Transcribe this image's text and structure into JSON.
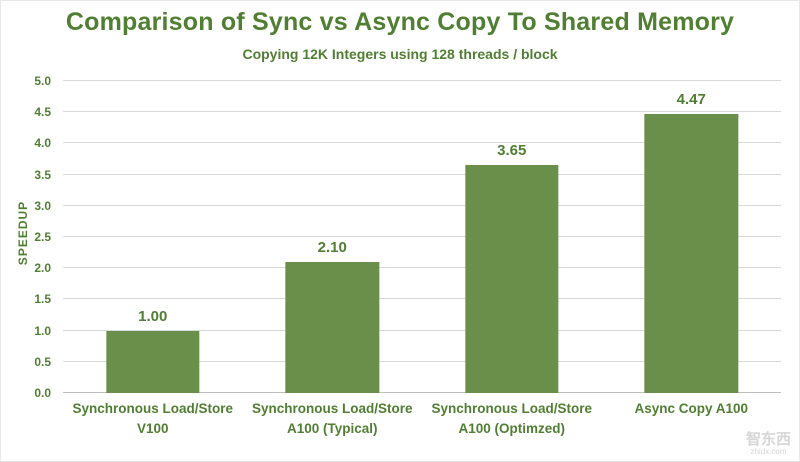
{
  "title": "Comparison of Sync vs Async Copy To Shared Memory",
  "subtitle": "Copying 12K Integers using 128 threads / block",
  "colors": {
    "text_green": "#507e32",
    "bar_green": "#6a8f4b",
    "gridline": "#d9d9d9",
    "axis_line": "#bfbfbf",
    "watermark": "#c9c9c9",
    "background": "#ffffff"
  },
  "watermark": {
    "line1": "智东西",
    "line2": "zhidx.com"
  },
  "chart_data": {
    "type": "bar",
    "title": "Comparison of Sync vs Async Copy To Shared Memory",
    "subtitle": "Copying 12K Integers using 128 threads / block",
    "xlabel": "",
    "ylabel": "SPEEDUP",
    "ylim": [
      0,
      5
    ],
    "ytick_step": 0.5,
    "yticks": [
      "0.0",
      "0.5",
      "1.0",
      "1.5",
      "2.0",
      "2.5",
      "3.0",
      "3.5",
      "4.0",
      "4.5",
      "5.0"
    ],
    "grid": "horizontal",
    "legend": "none",
    "categories": [
      [
        "Synchronous Load/Store",
        "V100"
      ],
      [
        "Synchronous Load/Store",
        "A100 (Typical)"
      ],
      [
        "Synchronous Load/Store",
        "A100 (Optimzed)"
      ],
      [
        "Async Copy A100"
      ]
    ],
    "values": [
      1.0,
      2.1,
      3.65,
      4.47
    ],
    "value_labels": [
      "1.00",
      "2.10",
      "3.65",
      "4.47"
    ]
  }
}
